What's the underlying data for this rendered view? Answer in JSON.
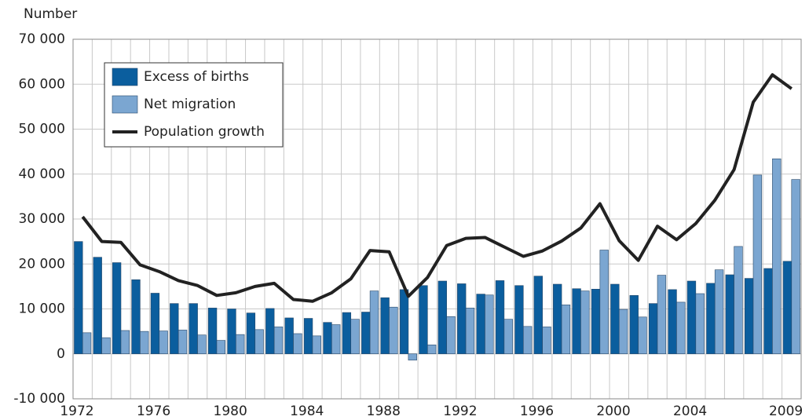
{
  "chart_data": {
    "type": "bar",
    "ylabel": "Number",
    "categories": [
      "1972",
      null,
      null,
      null,
      "1976",
      null,
      null,
      null,
      "1980",
      null,
      null,
      null,
      "1984",
      null,
      null,
      null,
      "1988",
      null,
      null,
      null,
      "1992",
      null,
      null,
      null,
      "1996",
      null,
      null,
      null,
      "2000",
      null,
      null,
      null,
      "2004",
      null,
      null,
      null,
      null,
      "2009"
    ],
    "series": [
      {
        "name": "Excess of births",
        "type": "bar",
        "color": "#0b5e9e",
        "values": [
          25000,
          21500,
          20300,
          16500,
          13500,
          11200,
          11200,
          10200,
          10000,
          9100,
          10100,
          8000,
          7900,
          7000,
          9200,
          9300,
          12500,
          14300,
          15200,
          16200,
          15600,
          13300,
          16300,
          15200,
          17300,
          15500,
          14500,
          14400,
          15500,
          13000,
          11200,
          14300,
          16200,
          15700,
          17600,
          16800,
          19000,
          20600
        ]
      },
      {
        "name": "Net migration",
        "type": "bar",
        "color": "#7ba6d1",
        "values": [
          4700,
          3600,
          5200,
          5000,
          5100,
          5300,
          4200,
          3000,
          4300,
          5400,
          6000,
          4500,
          4000,
          6500,
          7700,
          14000,
          10400,
          -1400,
          2000,
          8300,
          10200,
          13100,
          7700,
          6100,
          6000,
          10900,
          14000,
          23100,
          9900,
          8200,
          17500,
          11500,
          13400,
          18700,
          23900,
          39800,
          43400,
          38800
        ]
      },
      {
        "name": "Population growth",
        "type": "line",
        "color": "#222222",
        "values": [
          30500,
          25000,
          24800,
          19800,
          18300,
          16300,
          15200,
          13000,
          13600,
          15000,
          15700,
          12100,
          11700,
          13600,
          16700,
          23000,
          22700,
          12800,
          17000,
          24100,
          25700,
          25900,
          23800,
          21700,
          22900,
          25100,
          28000,
          33400,
          25200,
          20800,
          28400,
          25400,
          29000,
          34200,
          41000,
          56000,
          62100,
          59000
        ]
      }
    ],
    "ylim": [
      -10000,
      70000
    ],
    "yticks": [
      {
        "value": -10000,
        "label": "-10 000"
      },
      0,
      {
        "value": 10000,
        "label": "10 000"
      },
      {
        "value": 20000,
        "label": "20 000"
      },
      {
        "value": 30000,
        "label": "30 000"
      },
      {
        "value": 40000,
        "label": "40 000"
      },
      {
        "value": 50000,
        "label": "50 000"
      },
      {
        "value": 60000,
        "label": "60 000"
      },
      {
        "value": 70000,
        "label": "70 000"
      }
    ],
    "grid": true,
    "legend": "upper left"
  }
}
